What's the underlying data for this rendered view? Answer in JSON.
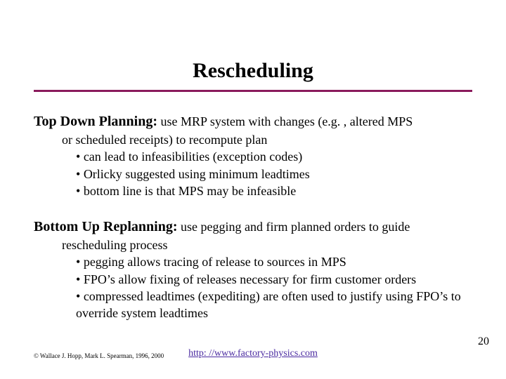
{
  "title": "Rescheduling",
  "rule_color": "#8a1a5c",
  "sections": [
    {
      "heading": "Top Down Planning:",
      "lead": " use MRP system with changes (e.g. , altered MPS",
      "cont": "or scheduled receipts) to recompute plan",
      "bullets": [
        "can lead to infeasibilities (exception codes)",
        "Orlicky suggested using minimum leadtimes",
        "bottom line is that MPS may be infeasible"
      ]
    },
    {
      "heading": "Bottom Up Replanning:",
      "lead": " use pegging and firm planned orders to guide",
      "cont": "rescheduling process",
      "bullets": [
        "pegging allows tracing of release to sources in MPS",
        "FPO’s allow fixing of releases necessary for firm customer orders",
        "compressed leadtimes (expediting) are often used to justify using FPO’s to override system leadtimes"
      ]
    }
  ],
  "footer": {
    "copyright": "© Wallace J. Hopp, Mark L. Spearman, 1996, 2000",
    "link_text": "http: //www.factory-physics.com",
    "link_href": "http://www.factory-physics.com"
  },
  "page_number": "20",
  "link_color": "#4a2aa0"
}
